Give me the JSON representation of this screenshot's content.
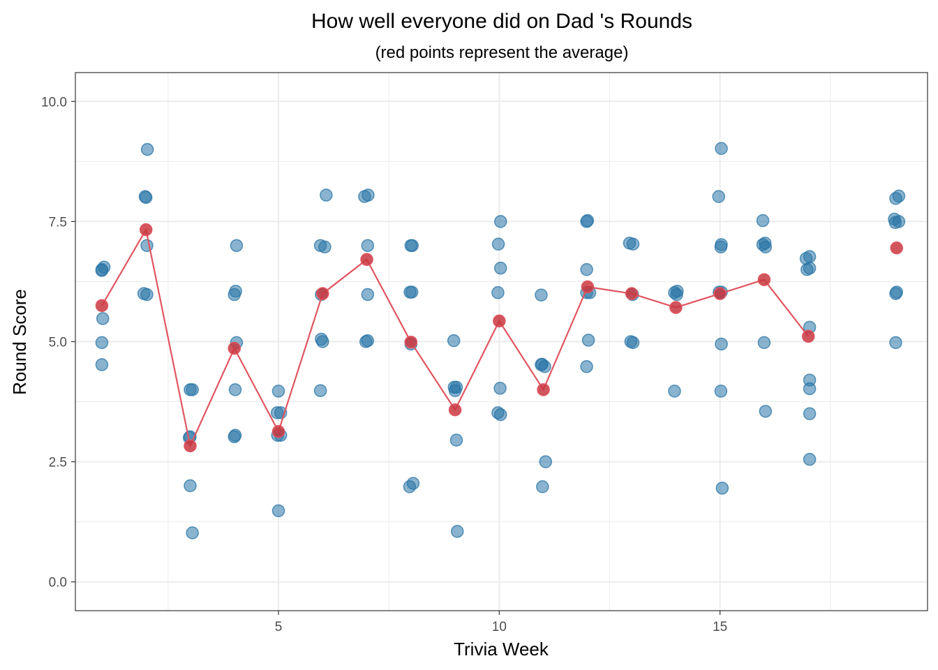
{
  "chart_data": {
    "type": "scatter",
    "title": "How well everyone did on Dad 's Rounds",
    "subtitle": "(red points represent the average)",
    "xlabel": "Trivia Week",
    "ylabel": "Round Score",
    "xlim": [
      0.4,
      19.7
    ],
    "ylim": [
      -0.6,
      10.6
    ],
    "x_ticks": [
      5,
      10,
      15
    ],
    "x_tick_labels": [
      "5",
      "10",
      "15"
    ],
    "y_ticks": [
      0,
      2.5,
      5,
      7.5,
      10
    ],
    "y_tick_labels": [
      "0.0",
      "2.5",
      "5.0",
      "7.5",
      "10.0"
    ],
    "x_minor": [
      2.5,
      7.5,
      12.5,
      17.5
    ],
    "y_minor": [
      1.25,
      3.75,
      6.25,
      8.75
    ],
    "grid": true,
    "legend": "none",
    "colors": {
      "points": "#2874a6",
      "average": "#e05560",
      "average_point": "#c8373f",
      "grid": "#ebebeb",
      "border": "#333333"
    },
    "series": [
      {
        "role": "individual scores",
        "points": [
          [
            1,
            6.5
          ],
          [
            1.05,
            6.55
          ],
          [
            1,
            6.48
          ],
          [
            1.02,
            5.48
          ],
          [
            1,
            4.98
          ],
          [
            1,
            4.52
          ],
          [
            2.03,
            9.0
          ],
          [
            1.98,
            8.02
          ],
          [
            2,
            8.0
          ],
          [
            2.02,
            7.0
          ],
          [
            1.95,
            6.0
          ],
          [
            2.02,
            5.98
          ],
          [
            3,
            4.0
          ],
          [
            3.05,
            4.0
          ],
          [
            3,
            3.02
          ],
          [
            2.98,
            3.0
          ],
          [
            3,
            2.0
          ],
          [
            3.05,
            1.02
          ],
          [
            4.05,
            7.0
          ],
          [
            4.03,
            6.05
          ],
          [
            4.0,
            5.98
          ],
          [
            4.05,
            4.98
          ],
          [
            4.02,
            4.0
          ],
          [
            4.02,
            3.05
          ],
          [
            4,
            3.02
          ],
          [
            5,
            3.97
          ],
          [
            4.97,
            3.52
          ],
          [
            5.05,
            3.52
          ],
          [
            4.98,
            3.05
          ],
          [
            5.05,
            3.05
          ],
          [
            5,
            1.48
          ],
          [
            5.95,
            7.0
          ],
          [
            6.05,
            6.97
          ],
          [
            6.08,
            8.05
          ],
          [
            5.97,
            5.98
          ],
          [
            5.97,
            5.05
          ],
          [
            6,
            5.0
          ],
          [
            5.95,
            3.98
          ],
          [
            6.95,
            8.02
          ],
          [
            7.03,
            8.05
          ],
          [
            7.02,
            7.0
          ],
          [
            7.02,
            5.98
          ],
          [
            6.98,
            5.0
          ],
          [
            7.02,
            5.02
          ],
          [
            8,
            7.0
          ],
          [
            8.03,
            7.0
          ],
          [
            7.98,
            6.03
          ],
          [
            8.02,
            6.03
          ],
          [
            8,
            4.95
          ],
          [
            7.97,
            1.98
          ],
          [
            8.05,
            2.05
          ],
          [
            8.97,
            5.02
          ],
          [
            8.98,
            4.05
          ],
          [
            9.03,
            4.05
          ],
          [
            9,
            3.98
          ],
          [
            9.03,
            2.95
          ],
          [
            9.05,
            1.05
          ],
          [
            10.03,
            7.5
          ],
          [
            9.98,
            7.03
          ],
          [
            10.03,
            6.53
          ],
          [
            9.97,
            6.02
          ],
          [
            10.02,
            4.03
          ],
          [
            9.97,
            3.52
          ],
          [
            10.03,
            3.48
          ],
          [
            10.95,
            5.97
          ],
          [
            10.97,
            4.53
          ],
          [
            11.03,
            4.48
          ],
          [
            10.95,
            4.52
          ],
          [
            11.05,
            2.5
          ],
          [
            10.98,
            1.98
          ],
          [
            12,
            7.52
          ],
          [
            11.98,
            7.5
          ],
          [
            11.98,
            6.5
          ],
          [
            11.98,
            6.02
          ],
          [
            12.05,
            6.02
          ],
          [
            12.02,
            5.03
          ],
          [
            11.98,
            4.48
          ],
          [
            12.95,
            7.05
          ],
          [
            13.03,
            7.03
          ],
          [
            13.02,
            5.98
          ],
          [
            12.98,
            5.0
          ],
          [
            13.03,
            4.98
          ],
          [
            14.03,
            6.05
          ],
          [
            13.97,
            6.02
          ],
          [
            14.02,
            5.98
          ],
          [
            13.97,
            3.97
          ],
          [
            15.03,
            9.02
          ],
          [
            14.97,
            8.02
          ],
          [
            15.03,
            7.02
          ],
          [
            15.02,
            6.97
          ],
          [
            14.98,
            6.03
          ],
          [
            15.03,
            6.03
          ],
          [
            15.03,
            4.95
          ],
          [
            15.02,
            3.97
          ],
          [
            15.05,
            1.95
          ],
          [
            15.97,
            7.52
          ],
          [
            16.02,
            7.05
          ],
          [
            15.97,
            7.02
          ],
          [
            16.03,
            6.97
          ],
          [
            16,
            4.98
          ],
          [
            16.03,
            3.55
          ],
          [
            16.95,
            6.73
          ],
          [
            17.03,
            6.77
          ],
          [
            17.03,
            6.53
          ],
          [
            16.97,
            6.5
          ],
          [
            17.03,
            5.3
          ],
          [
            17.03,
            4.2
          ],
          [
            17.03,
            4.02
          ],
          [
            17.03,
            3.5
          ],
          [
            17.03,
            2.55
          ],
          [
            18.95,
            7.55
          ],
          [
            19.05,
            8.03
          ],
          [
            18.98,
            7.98
          ],
          [
            19.05,
            7.5
          ],
          [
            18.97,
            7.48
          ],
          [
            19,
            6.03
          ],
          [
            18.98,
            6.0
          ],
          [
            18.98,
            4.98
          ]
        ]
      },
      {
        "role": "average",
        "x": [
          1,
          2,
          3,
          4,
          5,
          6,
          7,
          8,
          9,
          10,
          11,
          12,
          13,
          14,
          15,
          16,
          17,
          19
        ],
        "values": [
          5.75,
          7.33,
          2.83,
          4.86,
          3.13,
          6.0,
          6.71,
          4.99,
          3.58,
          5.43,
          4.0,
          6.14,
          6.0,
          5.71,
          6.0,
          6.29,
          5.11,
          6.95
        ],
        "line_through": [
          1,
          2,
          3,
          4,
          5,
          6,
          7,
          8,
          9,
          10,
          11,
          12,
          13,
          14,
          15,
          16,
          17
        ]
      }
    ]
  }
}
